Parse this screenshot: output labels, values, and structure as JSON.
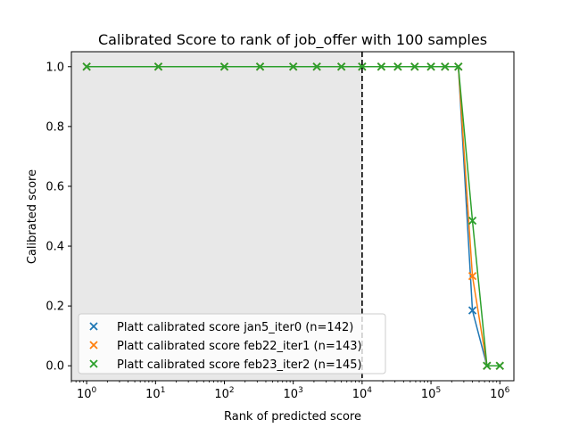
{
  "chart_data": {
    "type": "line",
    "title": "Calibrated Score to rank of job_offer with 100 samples",
    "xlabel": "Rank of predicted score",
    "ylabel": "Calibrated score",
    "xscale": "log",
    "xlim": [
      0.6,
      1600000
    ],
    "ylim": [
      -0.05,
      1.05
    ],
    "grid": false,
    "legend_position": "lower-left",
    "x_ticks": [
      {
        "value": 1,
        "base": "10",
        "exp": "0"
      },
      {
        "value": 10,
        "base": "10",
        "exp": "1"
      },
      {
        "value": 100,
        "base": "10",
        "exp": "2"
      },
      {
        "value": 1000,
        "base": "10",
        "exp": "3"
      },
      {
        "value": 10000,
        "base": "10",
        "exp": "4"
      },
      {
        "value": 100000,
        "base": "10",
        "exp": "5"
      },
      {
        "value": 1000000,
        "base": "10",
        "exp": "6"
      }
    ],
    "y_ticks": [
      {
        "value": 0.0,
        "label": "0.0"
      },
      {
        "value": 0.2,
        "label": "0.2"
      },
      {
        "value": 0.4,
        "label": "0.4"
      },
      {
        "value": 0.6,
        "label": "0.6"
      },
      {
        "value": 0.8,
        "label": "0.8"
      },
      {
        "value": 1.0,
        "label": "1.0"
      }
    ],
    "shaded_region": {
      "x_from": 0.6,
      "x_to": 10000,
      "color": "#e8e8e8"
    },
    "threshold_line": {
      "x": 10000,
      "color": "#000000",
      "style": "dashed"
    },
    "series": [
      {
        "name": "Platt calibrated score jan5_iter0 (n=142)",
        "color": "#1f77b4",
        "x": [
          1,
          11,
          100,
          330,
          1000,
          2200,
          5000,
          10000,
          19000,
          33000,
          58000,
          100000,
          160000,
          250000,
          400000,
          650000,
          1000000
        ],
        "y": [
          1.0,
          1.0,
          1.0,
          1.0,
          1.0,
          1.0,
          1.0,
          1.0,
          1.0,
          1.0,
          1.0,
          1.0,
          1.0,
          1.0,
          0.185,
          0.0,
          0.0
        ]
      },
      {
        "name": "Platt calibrated score feb22_iter1 (n=143)",
        "color": "#ff7f0e",
        "x": [
          1,
          11,
          100,
          330,
          1000,
          2200,
          5000,
          10000,
          19000,
          33000,
          58000,
          100000,
          160000,
          250000,
          400000,
          650000,
          1000000
        ],
        "y": [
          1.0,
          1.0,
          1.0,
          1.0,
          1.0,
          1.0,
          1.0,
          1.0,
          1.0,
          1.0,
          1.0,
          1.0,
          1.0,
          1.0,
          0.3,
          0.0,
          0.0
        ]
      },
      {
        "name": "Platt calibrated score feb23_iter2 (n=145)",
        "color": "#2ca02c",
        "x": [
          1,
          11,
          100,
          330,
          1000,
          2200,
          5000,
          10000,
          19000,
          33000,
          58000,
          100000,
          160000,
          250000,
          400000,
          650000,
          1000000
        ],
        "y": [
          1.0,
          1.0,
          1.0,
          1.0,
          1.0,
          1.0,
          1.0,
          1.0,
          1.0,
          1.0,
          1.0,
          1.0,
          1.0,
          1.0,
          0.485,
          0.0,
          0.0
        ]
      }
    ]
  }
}
